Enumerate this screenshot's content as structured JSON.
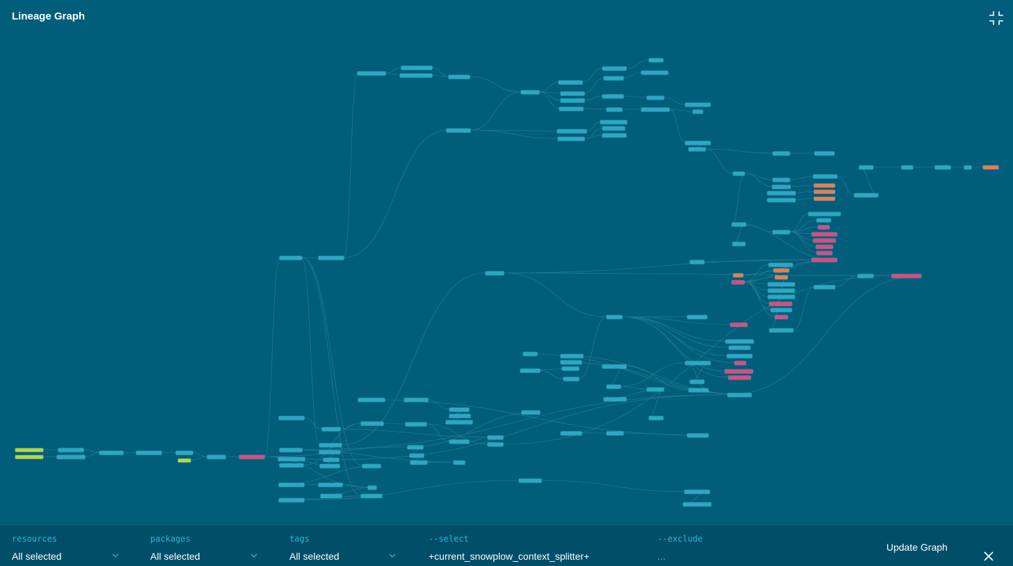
{
  "header": {
    "title": "Lineage Graph"
  },
  "colors": {
    "background": "#005e7a",
    "toolbar": "#004e68",
    "node_default": "#2aa8c4",
    "node_source": "#b9d63a",
    "node_pink": "#e8467c",
    "node_orange": "#f07a4a",
    "label_accent": "#2fb6d6"
  },
  "icons": {
    "collapse": "collapse-arrows-icon",
    "chevron": "chevron-down-icon",
    "close": "close-icon"
  },
  "filters": {
    "resources": {
      "label": "resources",
      "value": "All selected"
    },
    "packages": {
      "label": "packages",
      "value": "All selected"
    },
    "tags": {
      "label": "tags",
      "value": "All selected"
    },
    "select": {
      "label": "--select",
      "value": "+current_snowplow_context_splitter+"
    },
    "exclude": {
      "label": "--exclude",
      "value": "..."
    }
  },
  "actions": {
    "update_label": "Update Graph"
  }
}
